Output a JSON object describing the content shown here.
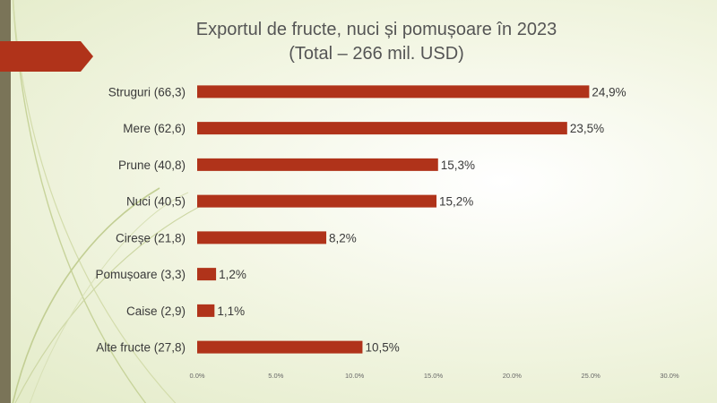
{
  "slide": {
    "title_line1": "Exportul de fructe, nuci și pomușoare în 2023",
    "title_line2": "(Total – 266 mil. USD)"
  },
  "colors": {
    "bar": "#b0331a",
    "side_strip": "#7a7458",
    "arrow": "#b0331a",
    "decor_lines": "#c7d39a"
  },
  "chart_data": {
    "type": "bar",
    "orientation": "horizontal",
    "categories": [
      "Struguri (66,3)",
      "Mere (62,6)",
      "Prune (40,8)",
      "Nuci (40,5)",
      "Cireșe (21,8)",
      "Pomușoare (3,3)",
      "Caise (2,9)",
      "Alte fructe (27,8)"
    ],
    "values": [
      24.9,
      23.5,
      15.3,
      15.2,
      8.2,
      1.2,
      1.1,
      10.5
    ],
    "data_labels": [
      "24,9%",
      "23,5%",
      "15,3%",
      "15,2%",
      "8,2%",
      "1,2%",
      "1,1%",
      "10,5%"
    ],
    "x_ticks": [
      "0.0%",
      "5.0%",
      "10.0%",
      "15.0%",
      "20.0%",
      "25.0%",
      "30.0%"
    ],
    "x_tick_values": [
      0,
      5,
      10,
      15,
      20,
      25,
      30
    ],
    "xlim": [
      0,
      30
    ],
    "title": "Exportul de fructe, nuci și pomușoare în 2023",
    "subtitle": "(Total – 266 mil. USD)",
    "xlabel": "",
    "ylabel": "",
    "grid": false,
    "legend": "none"
  }
}
